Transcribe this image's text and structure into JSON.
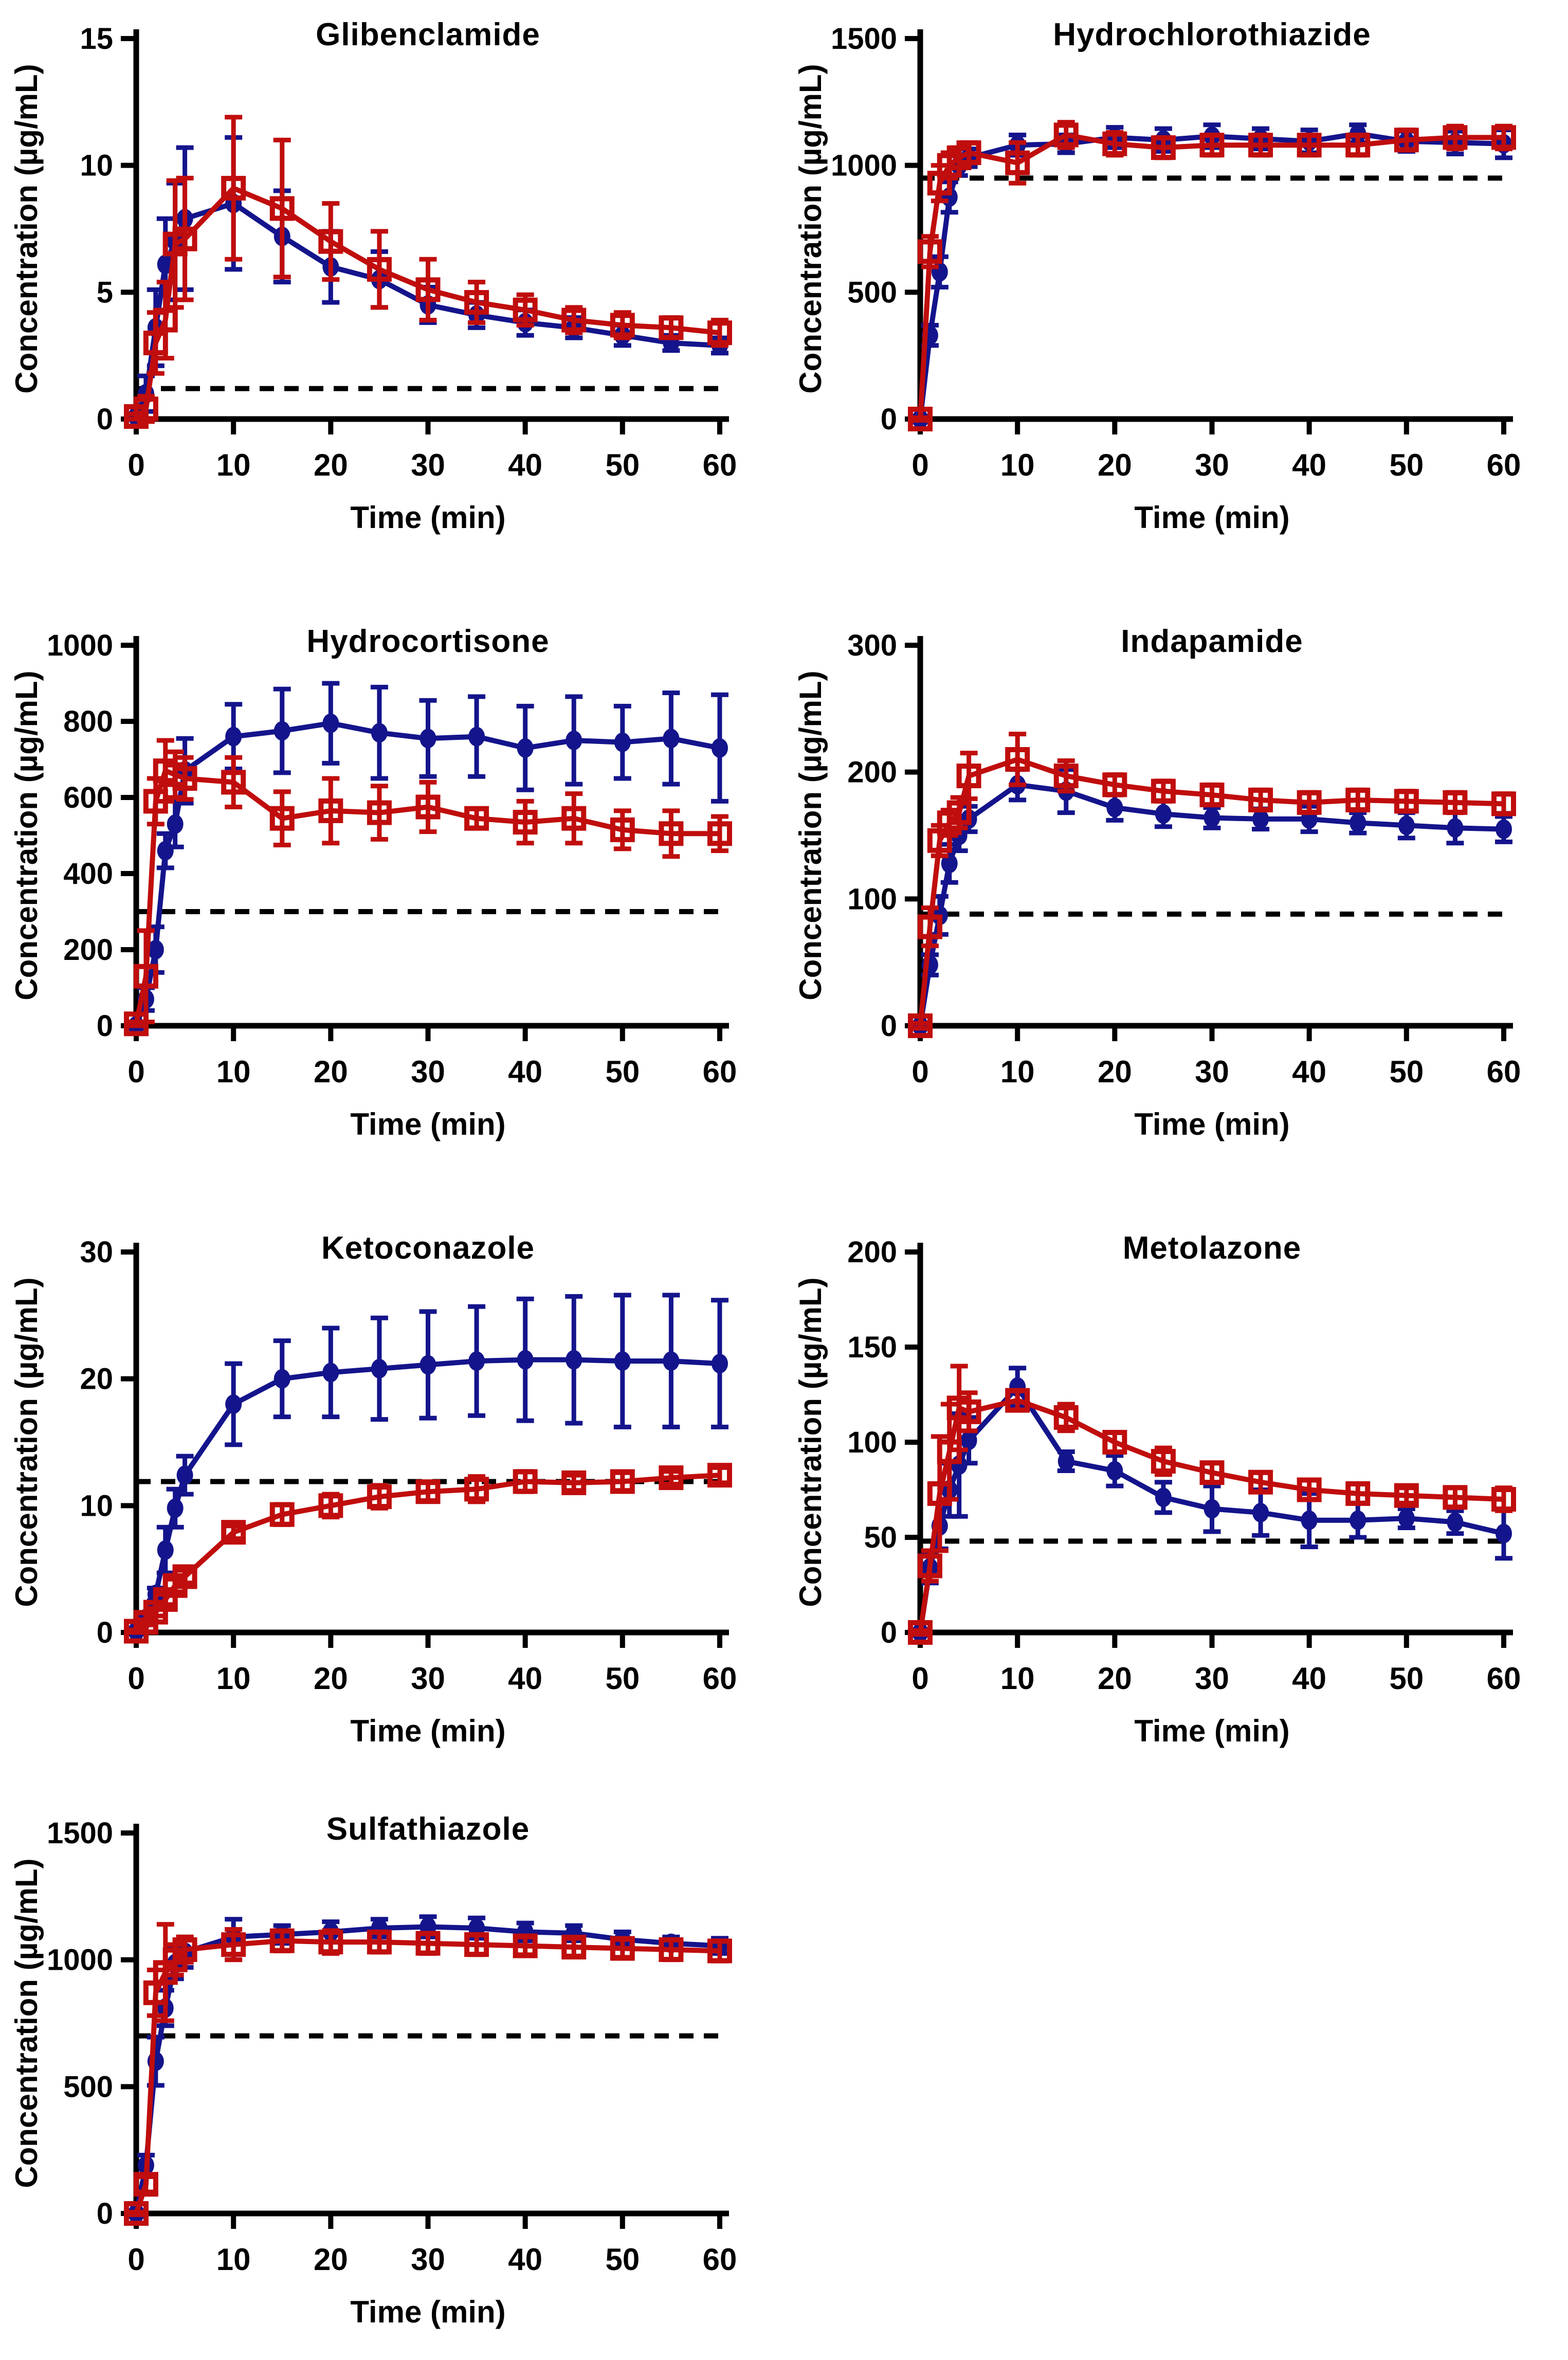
{
  "figure": {
    "description": "Seven concentration-time dissolution profiles, two series each (dark blue filled circles, dark red open squares) with error bars and a black dashed threshold line",
    "background": "#ffffff",
    "axis_color": "#000000",
    "series_colors": {
      "filled_circles": "#14148C",
      "open_squares": "#C00D0D"
    },
    "xlabel": "Time (min)",
    "ylabel": "Concentration (µg/mL)"
  },
  "chart_data": [
    {
      "type": "line",
      "title": "Glibenclamide",
      "xlabel": "Time (min)",
      "ylabel": "Concentration (µg/mL)",
      "xlim": [
        0,
        60
      ],
      "ylim": [
        0,
        15
      ],
      "xticks": [
        0,
        10,
        20,
        30,
        40,
        50,
        60
      ],
      "yticks": [
        0,
        5,
        10,
        15
      ],
      "dashed_line_y": 1.2,
      "x": [
        0,
        1,
        2,
        3,
        4,
        5,
        10,
        15,
        20,
        25,
        30,
        35,
        40,
        45,
        50,
        55,
        60
      ],
      "series": [
        {
          "name": "blue-filled-circles",
          "marker": "circle",
          "color": "#14148C",
          "values": [
            0.1,
            1.0,
            3.6,
            6.1,
            7.0,
            7.9,
            8.5,
            7.2,
            6.0,
            5.5,
            4.5,
            4.1,
            3.8,
            3.6,
            3.3,
            3.0,
            2.9
          ],
          "errors": [
            0.1,
            0.7,
            1.5,
            1.8,
            2.3,
            2.8,
            2.6,
            1.8,
            1.4,
            1.1,
            0.7,
            0.5,
            0.5,
            0.4,
            0.4,
            0.3,
            0.3
          ]
        },
        {
          "name": "red-open-squares",
          "marker": "square-open",
          "color": "#C00D0D",
          "values": [
            0.1,
            0.4,
            3.0,
            3.9,
            6.9,
            7.1,
            9.1,
            8.3,
            7.0,
            5.9,
            5.1,
            4.6,
            4.3,
            3.9,
            3.7,
            3.6,
            3.4
          ],
          "errors": [
            0.1,
            0.5,
            1.2,
            1.5,
            2.5,
            2.4,
            2.8,
            2.7,
            1.5,
            1.5,
            1.2,
            0.8,
            0.6,
            0.5,
            0.5,
            0.4,
            0.5
          ]
        }
      ]
    },
    {
      "type": "line",
      "title": "Hydrochlorothiazide",
      "xlabel": "Time (min)",
      "ylabel": "Concentration (µg/mL)",
      "xlim": [
        0,
        60
      ],
      "ylim": [
        0,
        1500
      ],
      "xticks": [
        0,
        10,
        20,
        30,
        40,
        50,
        60
      ],
      "yticks": [
        0,
        500,
        1000,
        1500
      ],
      "dashed_line_y": 950,
      "x": [
        0,
        1,
        2,
        3,
        4,
        5,
        10,
        15,
        20,
        25,
        30,
        35,
        40,
        45,
        50,
        55,
        60
      ],
      "series": [
        {
          "name": "blue-filled-circles",
          "marker": "circle",
          "color": "#14148C",
          "values": [
            0,
            330,
            580,
            875,
            1000,
            1030,
            1080,
            1085,
            1110,
            1100,
            1115,
            1105,
            1095,
            1125,
            1095,
            1090,
            1085
          ],
          "errors": [
            5,
            40,
            60,
            60,
            40,
            35,
            40,
            35,
            40,
            45,
            45,
            40,
            45,
            35,
            40,
            45,
            55
          ]
        },
        {
          "name": "red-open-squares",
          "marker": "square-open",
          "color": "#C00D0D",
          "values": [
            0,
            660,
            930,
            1000,
            1030,
            1050,
            1010,
            1120,
            1085,
            1070,
            1080,
            1080,
            1080,
            1080,
            1100,
            1110,
            1110
          ],
          "errors": [
            5,
            60,
            70,
            50,
            40,
            40,
            80,
            50,
            45,
            40,
            40,
            40,
            40,
            40,
            40,
            45,
            45
          ]
        }
      ]
    },
    {
      "type": "line",
      "title": "Hydrocortisone",
      "xlabel": "Time (min)",
      "ylabel": "Concentration (µg/mL)",
      "xlim": [
        0,
        60
      ],
      "ylim": [
        0,
        1000
      ],
      "xticks": [
        0,
        10,
        20,
        30,
        40,
        50,
        60
      ],
      "yticks": [
        0,
        200,
        400,
        600,
        800,
        1000
      ],
      "dashed_line_y": 300,
      "x": [
        0,
        1,
        2,
        3,
        4,
        5,
        10,
        15,
        20,
        25,
        30,
        35,
        40,
        45,
        50,
        55,
        60
      ],
      "series": [
        {
          "name": "blue-filled-circles",
          "marker": "circle",
          "color": "#14148C",
          "values": [
            0,
            70,
            200,
            460,
            530,
            670,
            760,
            775,
            795,
            770,
            755,
            760,
            730,
            750,
            745,
            755,
            730
          ],
          "errors": [
            5,
            30,
            60,
            45,
            60,
            85,
            85,
            110,
            105,
            120,
            100,
            105,
            110,
            115,
            95,
            120,
            140
          ]
        },
        {
          "name": "red-open-squares",
          "marker": "square-open",
          "color": "#C00D0D",
          "values": [
            5,
            130,
            590,
            670,
            660,
            650,
            640,
            545,
            565,
            560,
            575,
            545,
            535,
            545,
            515,
            505,
            505
          ],
          "errors": [
            5,
            120,
            60,
            80,
            60,
            55,
            65,
            70,
            85,
            70,
            65,
            25,
            55,
            65,
            50,
            60,
            45
          ]
        }
      ]
    },
    {
      "type": "line",
      "title": "Indapamide",
      "xlabel": "Time (min)",
      "ylabel": "Concentration (µg/mL)",
      "xlim": [
        0,
        60
      ],
      "ylim": [
        0,
        300
      ],
      "xticks": [
        0,
        10,
        20,
        30,
        40,
        50,
        60
      ],
      "yticks": [
        0,
        100,
        200,
        300
      ],
      "dashed_line_y": 88,
      "x": [
        0,
        1,
        2,
        3,
        4,
        5,
        10,
        15,
        20,
        25,
        30,
        35,
        40,
        45,
        50,
        55,
        60
      ],
      "series": [
        {
          "name": "blue-filled-circles",
          "marker": "circle",
          "color": "#14148C",
          "values": [
            0,
            48,
            87,
            128,
            150,
            163,
            190,
            185,
            172,
            167,
            164,
            163,
            163,
            160,
            158,
            156,
            155
          ],
          "errors": [
            2,
            8,
            15,
            15,
            12,
            10,
            12,
            17,
            10,
            10,
            8,
            8,
            10,
            8,
            10,
            12,
            10
          ]
        },
        {
          "name": "red-open-squares",
          "marker": "square-open",
          "color": "#C00D0D",
          "values": [
            0,
            78,
            146,
            160,
            168,
            197,
            210,
            197,
            190,
            185,
            182,
            178,
            176,
            178,
            177,
            176,
            175
          ],
          "errors": [
            2,
            15,
            12,
            10,
            12,
            18,
            20,
            12,
            8,
            8,
            8,
            8,
            8,
            8,
            8,
            8,
            8
          ]
        }
      ]
    },
    {
      "type": "line",
      "title": "Ketoconazole",
      "xlabel": "Time (min)",
      "ylabel": "Concentration (µg/mL)",
      "xlim": [
        0,
        60
      ],
      "ylim": [
        0,
        30
      ],
      "xticks": [
        0,
        10,
        20,
        30,
        40,
        50,
        60
      ],
      "yticks": [
        0,
        10,
        20,
        30
      ],
      "dashed_line_y": 11.9,
      "x": [
        0,
        1,
        2,
        3,
        4,
        5,
        10,
        15,
        20,
        25,
        30,
        35,
        40,
        45,
        50,
        55,
        60
      ],
      "series": [
        {
          "name": "blue-filled-circles",
          "marker": "circle",
          "color": "#14148C",
          "values": [
            0.1,
            1.1,
            3.0,
            6.5,
            9.8,
            12.4,
            18.0,
            20.0,
            20.5,
            20.8,
            21.1,
            21.4,
            21.5,
            21.5,
            21.4,
            21.4,
            21.2
          ],
          "errors": [
            0.1,
            0.4,
            0.5,
            1.8,
            1.5,
            1.5,
            3.2,
            3.0,
            3.5,
            4.0,
            4.2,
            4.3,
            4.8,
            5.0,
            5.2,
            5.2,
            5.0
          ]
        },
        {
          "name": "red-open-squares",
          "marker": "square-open",
          "color": "#C00D0D",
          "values": [
            0.1,
            0.8,
            1.6,
            2.6,
            3.7,
            4.4,
            7.9,
            9.3,
            10.0,
            10.7,
            11.1,
            11.3,
            11.9,
            11.8,
            11.9,
            12.2,
            12.4
          ],
          "errors": [
            0.1,
            0.2,
            0.3,
            0.4,
            0.5,
            0.5,
            0.5,
            0.8,
            0.9,
            0.9,
            0.7,
            1.0,
            0.8,
            0.6,
            0.7,
            0.5,
            0.6
          ]
        }
      ]
    },
    {
      "type": "line",
      "title": "Metolazone",
      "xlabel": "Time (min)",
      "ylabel": "Concentration (µg/mL)",
      "xlim": [
        0,
        60
      ],
      "ylim": [
        0,
        200
      ],
      "xticks": [
        0,
        10,
        20,
        30,
        40,
        50,
        60
      ],
      "yticks": [
        0,
        50,
        100,
        150,
        200
      ],
      "dashed_line_y": 48,
      "x": [
        0,
        1,
        2,
        3,
        4,
        5,
        10,
        15,
        20,
        25,
        30,
        35,
        40,
        45,
        50,
        55,
        60
      ],
      "series": [
        {
          "name": "blue-filled-circles",
          "marker": "circle",
          "color": "#14148C",
          "values": [
            0,
            34,
            56,
            75,
            88,
            101,
            129,
            90,
            85,
            71,
            65,
            63,
            59,
            59,
            60,
            58,
            52
          ],
          "errors": [
            1,
            8,
            12,
            14,
            27,
            12,
            10,
            5,
            8,
            8,
            12,
            12,
            14,
            9,
            5,
            6,
            13
          ]
        },
        {
          "name": "red-open-squares",
          "marker": "square-open",
          "color": "#C00D0D",
          "values": [
            0,
            35,
            73,
            95,
            118,
            116,
            122,
            113,
            100,
            90,
            84,
            79,
            75,
            73,
            72,
            71,
            70
          ],
          "errors": [
            1,
            8,
            30,
            25,
            22,
            10,
            5,
            7,
            5,
            7,
            5,
            5,
            5,
            5,
            4,
            5,
            6
          ]
        }
      ]
    },
    {
      "type": "line",
      "title": "Sulfathiazole",
      "xlabel": "Time (min)",
      "ylabel": "Concentration (µg/mL)",
      "xlim": [
        0,
        60
      ],
      "ylim": [
        0,
        1500
      ],
      "xticks": [
        0,
        10,
        20,
        30,
        40,
        50,
        60
      ],
      "yticks": [
        0,
        500,
        1000,
        1500
      ],
      "dashed_line_y": 700,
      "x": [
        0,
        1,
        2,
        3,
        4,
        5,
        10,
        15,
        20,
        25,
        30,
        35,
        40,
        45,
        50,
        55,
        60
      ],
      "series": [
        {
          "name": "blue-filled-circles",
          "marker": "circle",
          "color": "#14148C",
          "values": [
            0,
            190,
            600,
            810,
            985,
            1030,
            1090,
            1100,
            1110,
            1125,
            1130,
            1125,
            1110,
            1105,
            1080,
            1065,
            1055
          ],
          "errors": [
            5,
            40,
            95,
            70,
            60,
            60,
            70,
            35,
            40,
            35,
            40,
            40,
            35,
            30,
            30,
            25,
            30
          ]
        },
        {
          "name": "red-open-squares",
          "marker": "square-open",
          "color": "#C00D0D",
          "values": [
            0,
            115,
            870,
            950,
            1000,
            1040,
            1060,
            1075,
            1070,
            1070,
            1065,
            1060,
            1055,
            1050,
            1045,
            1040,
            1035
          ],
          "errors": [
            5,
            30,
            90,
            190,
            60,
            50,
            60,
            40,
            45,
            40,
            40,
            40,
            35,
            35,
            35,
            40,
            40
          ]
        }
      ]
    }
  ]
}
